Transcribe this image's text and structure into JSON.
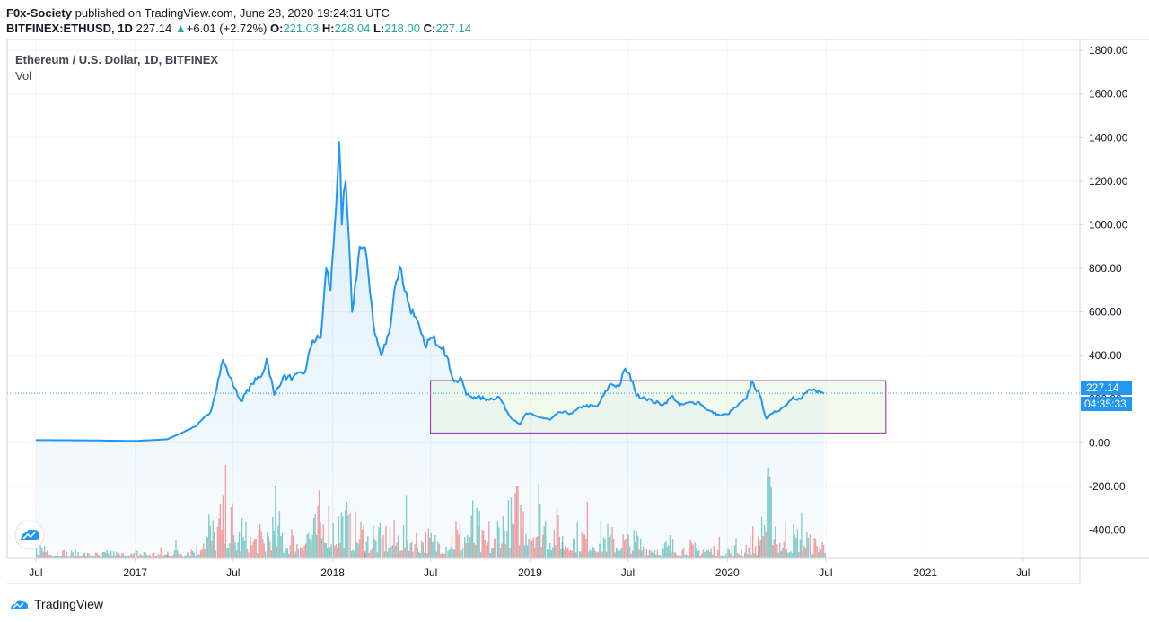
{
  "header": {
    "author": "F0x-Society",
    "published_text": "published on TradingView.com, June 28, 2020 19:24:31 UTC",
    "symbol": "BITFINEX:ETHUSD, 1D",
    "last": "227.14",
    "change": "+6.01 (+2.72%)",
    "o_label": "O:",
    "o_value": "221.03",
    "h_label": "H:",
    "h_value": "228.04",
    "l_label": "L:",
    "l_value": "218.00",
    "c_label": "C:",
    "c_value": "227.14"
  },
  "legend": {
    "title": "Ethereum / U.S. Dollar, 1D, BITFINEX",
    "indicator": "Vol"
  },
  "price_tag": {
    "price": "227.14",
    "countdown": "04:35:33"
  },
  "footer": {
    "brand": "TradingView"
  },
  "colors": {
    "line": "#2196f3",
    "up": "#26a69a",
    "down": "#ef5350",
    "box": "#9c27b0",
    "tag": "#2196f3"
  },
  "chart_data": {
    "type": "area",
    "y_ticks": [
      "1800.00",
      "1600.00",
      "1400.00",
      "1200.00",
      "1000.00",
      "800.00",
      "600.00",
      "400.00",
      "200.00",
      "0.00",
      "-200.00",
      "-400.00"
    ],
    "x_ticks": [
      "Jul",
      "2017",
      "Jul",
      "2018",
      "Jul",
      "2019",
      "Jul",
      "2020",
      "Jul",
      "2021",
      "Jul"
    ],
    "y_range": [
      -530,
      1850
    ],
    "x_range": [
      "2016-05-09",
      "2021-10-14"
    ],
    "price_series": [
      [
        "2016-07-01",
        12
      ],
      [
        "2016-10-01",
        11
      ],
      [
        "2017-01-01",
        8
      ],
      [
        "2017-03-01",
        16
      ],
      [
        "2017-04-01",
        50
      ],
      [
        "2017-04-25",
        80
      ],
      [
        "2017-05-20",
        140
      ],
      [
        "2017-06-12",
        380
      ],
      [
        "2017-06-25",
        300
      ],
      [
        "2017-07-15",
        190
      ],
      [
        "2017-08-05",
        270
      ],
      [
        "2017-08-25",
        320
      ],
      [
        "2017-09-01",
        385
      ],
      [
        "2017-09-15",
        220
      ],
      [
        "2017-10-01",
        300
      ],
      [
        "2017-10-20",
        300
      ],
      [
        "2017-11-10",
        320
      ],
      [
        "2017-11-25",
        470
      ],
      [
        "2017-12-10",
        480
      ],
      [
        "2017-12-20",
        800
      ],
      [
        "2017-12-28",
        700
      ],
      [
        "2018-01-05",
        1000
      ],
      [
        "2018-01-13",
        1380
      ],
      [
        "2018-01-18",
        1000
      ],
      [
        "2018-01-25",
        1200
      ],
      [
        "2018-02-06",
        600
      ],
      [
        "2018-02-20",
        900
      ],
      [
        "2018-03-05",
        850
      ],
      [
        "2018-03-20",
        500
      ],
      [
        "2018-04-01",
        400
      ],
      [
        "2018-04-15",
        500
      ],
      [
        "2018-04-25",
        700
      ],
      [
        "2018-05-05",
        810
      ],
      [
        "2018-05-20",
        650
      ],
      [
        "2018-06-01",
        580
      ],
      [
        "2018-06-20",
        450
      ],
      [
        "2018-07-05",
        480
      ],
      [
        "2018-07-25",
        440
      ],
      [
        "2018-08-14",
        280
      ],
      [
        "2018-08-28",
        290
      ],
      [
        "2018-09-05",
        220
      ],
      [
        "2018-09-20",
        210
      ],
      [
        "2018-10-15",
        200
      ],
      [
        "2018-11-05",
        210
      ],
      [
        "2018-11-25",
        120
      ],
      [
        "2018-12-14",
        85
      ],
      [
        "2018-12-25",
        135
      ],
      [
        "2019-01-15",
        120
      ],
      [
        "2019-02-07",
        105
      ],
      [
        "2019-02-25",
        140
      ],
      [
        "2019-03-20",
        135
      ],
      [
        "2019-04-10",
        170
      ],
      [
        "2019-05-05",
        165
      ],
      [
        "2019-05-30",
        270
      ],
      [
        "2019-06-15",
        260
      ],
      [
        "2019-06-26",
        340
      ],
      [
        "2019-07-10",
        280
      ],
      [
        "2019-07-17",
        215
      ],
      [
        "2019-07-30",
        210
      ],
      [
        "2019-08-15",
        190
      ],
      [
        "2019-09-05",
        175
      ],
      [
        "2019-09-22",
        215
      ],
      [
        "2019-10-05",
        170
      ],
      [
        "2019-10-26",
        185
      ],
      [
        "2019-11-10",
        185
      ],
      [
        "2019-11-25",
        150
      ],
      [
        "2019-12-18",
        125
      ],
      [
        "2020-01-01",
        130
      ],
      [
        "2020-01-20",
        170
      ],
      [
        "2020-02-05",
        200
      ],
      [
        "2020-02-15",
        280
      ],
      [
        "2020-03-01",
        220
      ],
      [
        "2020-03-13",
        110
      ],
      [
        "2020-03-25",
        135
      ],
      [
        "2020-04-15",
        165
      ],
      [
        "2020-05-01",
        210
      ],
      [
        "2020-05-15",
        200
      ],
      [
        "2020-06-01",
        245
      ],
      [
        "2020-06-15",
        230
      ],
      [
        "2020-06-28",
        227
      ]
    ],
    "range_box": {
      "start": "2018-07-01",
      "end": "2020-10-20",
      "top": 285,
      "bottom": 45
    },
    "volume_note": "daily volume histogram, relative heights (0-1)",
    "volume_series": [
      [
        "2016-07",
        0.25,
        1
      ],
      [
        "2016-08",
        0.12,
        0
      ],
      [
        "2016-09",
        0.1,
        1
      ],
      [
        "2016-10",
        0.08,
        0
      ],
      [
        "2016-11",
        0.1,
        1
      ],
      [
        "2016-12",
        0.08,
        0
      ],
      [
        "2017-01",
        0.12,
        1
      ],
      [
        "2017-02",
        0.1,
        0
      ],
      [
        "2017-03",
        0.18,
        1
      ],
      [
        "2017-04",
        0.2,
        0
      ],
      [
        "2017-05",
        0.55,
        1
      ],
      [
        "2017-06",
        0.75,
        0
      ],
      [
        "2017-07",
        0.45,
        1
      ],
      [
        "2017-08",
        0.4,
        0
      ],
      [
        "2017-09",
        0.6,
        1
      ],
      [
        "2017-10",
        0.35,
        0
      ],
      [
        "2017-11",
        0.55,
        1
      ],
      [
        "2017-12",
        0.8,
        0
      ],
      [
        "2018-01",
        0.75,
        1
      ],
      [
        "2018-02",
        0.55,
        0
      ],
      [
        "2018-03",
        0.4,
        1
      ],
      [
        "2018-04",
        0.45,
        0
      ],
      [
        "2018-05",
        0.5,
        1
      ],
      [
        "2018-06",
        0.4,
        0
      ],
      [
        "2018-07",
        0.35,
        1
      ],
      [
        "2018-08",
        0.5,
        0
      ],
      [
        "2018-09",
        0.6,
        1
      ],
      [
        "2018-10",
        0.35,
        0
      ],
      [
        "2018-11",
        0.75,
        1
      ],
      [
        "2018-12",
        0.95,
        0
      ],
      [
        "2019-01",
        0.85,
        1
      ],
      [
        "2019-02",
        0.6,
        0
      ],
      [
        "2019-03",
        0.45,
        1
      ],
      [
        "2019-04",
        0.5,
        0
      ],
      [
        "2019-05",
        0.45,
        1
      ],
      [
        "2019-06",
        0.4,
        0
      ],
      [
        "2019-07",
        0.35,
        1
      ],
      [
        "2019-08",
        0.25,
        0
      ],
      [
        "2019-09",
        0.25,
        1
      ],
      [
        "2019-10",
        0.22,
        0
      ],
      [
        "2019-11",
        0.2,
        1
      ],
      [
        "2019-12",
        0.18,
        0
      ],
      [
        "2020-01",
        0.2,
        1
      ],
      [
        "2020-02",
        0.3,
        0
      ],
      [
        "2020-03",
        1.0,
        1
      ],
      [
        "2020-04",
        0.4,
        0
      ],
      [
        "2020-05",
        0.45,
        1
      ],
      [
        "2020-06",
        0.3,
        0
      ]
    ]
  }
}
